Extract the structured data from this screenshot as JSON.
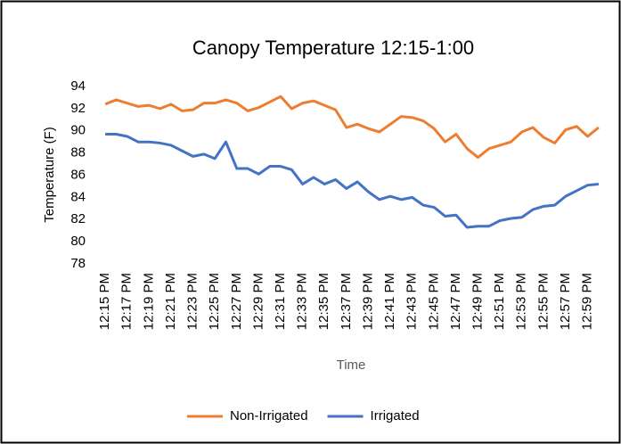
{
  "chart_data": {
    "type": "line",
    "title": "Canopy Temperature  12:15-1:00",
    "y_label": "Temperature (F)",
    "x_label": "Time",
    "categories": [
      "12:15 PM",
      null,
      "12:17 PM",
      null,
      "12:19 PM",
      null,
      "12:21 PM",
      null,
      "12:23 PM",
      null,
      "12:25 PM",
      null,
      "12:27 PM",
      null,
      "12:29 PM",
      null,
      "12:31 PM",
      null,
      "12:33 PM",
      null,
      "12:35 PM",
      null,
      "12:37 PM",
      null,
      "12:39 PM",
      null,
      "12:41 PM",
      null,
      "12:43 PM",
      null,
      "12:45 PM",
      null,
      "12:47 PM",
      null,
      "12:49 PM",
      null,
      "12:51 PM",
      null,
      "12:53 PM",
      null,
      "12:55 PM",
      null,
      "12:57 PM",
      null,
      "12:59 PM",
      null
    ],
    "series": [
      {
        "name": "Non-Irrigated",
        "color": "#ed7d31",
        "values": [
          92.4,
          92.8,
          92.5,
          92.2,
          92.3,
          92.0,
          92.4,
          91.8,
          91.9,
          92.5,
          92.5,
          92.8,
          92.5,
          91.8,
          92.1,
          92.6,
          93.1,
          92.0,
          92.5,
          92.7,
          92.3,
          91.9,
          90.3,
          90.6,
          90.2,
          89.9,
          90.6,
          91.3,
          91.2,
          90.9,
          90.2,
          89.0,
          89.7,
          88.4,
          87.6,
          88.4,
          88.7,
          89.0,
          89.9,
          90.3,
          89.4,
          88.9,
          90.1,
          90.4,
          89.5,
          90.3
        ]
      },
      {
        "name": "Irrigated",
        "color": "#4472c4",
        "values": [
          89.7,
          89.7,
          89.5,
          89.0,
          89.0,
          88.9,
          88.7,
          88.2,
          87.7,
          87.9,
          87.5,
          89.0,
          86.6,
          86.6,
          86.1,
          86.8,
          86.8,
          86.5,
          85.2,
          85.8,
          85.2,
          85.6,
          84.8,
          85.4,
          84.5,
          83.8,
          84.1,
          83.8,
          84.0,
          83.3,
          83.1,
          82.3,
          82.4,
          81.3,
          81.4,
          81.4,
          81.9,
          82.1,
          82.2,
          82.9,
          83.2,
          83.3,
          84.1,
          84.6,
          85.1,
          85.2
        ]
      }
    ],
    "ylim": [
      78,
      94
    ],
    "yticks": [
      78,
      80,
      82,
      84,
      86,
      88,
      90,
      92,
      94
    ],
    "grid": false,
    "legend": "bottom"
  }
}
